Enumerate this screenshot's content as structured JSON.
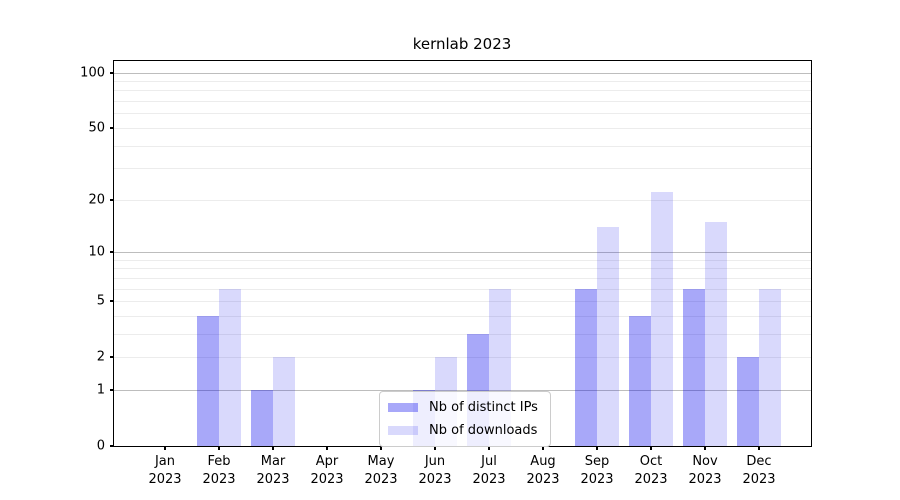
{
  "chart_data": {
    "type": "bar",
    "title": "kernlab 2023",
    "categories": [
      "Jan 2023",
      "Feb 2023",
      "Mar 2023",
      "Apr 2023",
      "May 2023",
      "Jun 2023",
      "Jul 2023",
      "Aug 2023",
      "Sep 2023",
      "Oct 2023",
      "Nov 2023",
      "Dec 2023"
    ],
    "x_tick_months": [
      "Jan",
      "Feb",
      "Mar",
      "Apr",
      "May",
      "Jun",
      "Jul",
      "Aug",
      "Sep",
      "Oct",
      "Nov",
      "Dec"
    ],
    "x_tick_year": "2023",
    "series": [
      {
        "name": "Nb of distinct IPs",
        "color_hex": "#aaaaf8",
        "fill": "rgba(0,0,238,0.34)",
        "values": [
          0,
          4,
          1,
          0,
          0,
          1,
          3,
          0,
          6,
          4,
          6,
          2
        ]
      },
      {
        "name": "Nb of downloads",
        "color_hex": "#d9d9fb",
        "fill": "rgba(20,20,235,0.16)",
        "values": [
          0,
          6,
          2,
          0,
          0,
          2,
          6,
          0,
          14,
          22,
          15,
          6
        ]
      }
    ],
    "y_scale": "log10(value+1)",
    "y_ticks": [
      0,
      1,
      2,
      5,
      10,
      20,
      50,
      100
    ],
    "major_gridlines": [
      1,
      10,
      100
    ],
    "minor_gridlines": [
      2,
      3,
      4,
      5,
      6,
      7,
      8,
      9,
      20,
      30,
      40,
      50,
      60,
      70,
      80,
      90
    ],
    "ylim": [
      0,
      117
    ],
    "grid": "on",
    "legend_position": "inside-bottom-center",
    "colors": {
      "bar_dark": "#aaaaf8",
      "bar_light": "#d9d9fb",
      "major_grid": "#bdbdbd",
      "minor_grid": "#ececec",
      "axis": "#000000"
    }
  }
}
